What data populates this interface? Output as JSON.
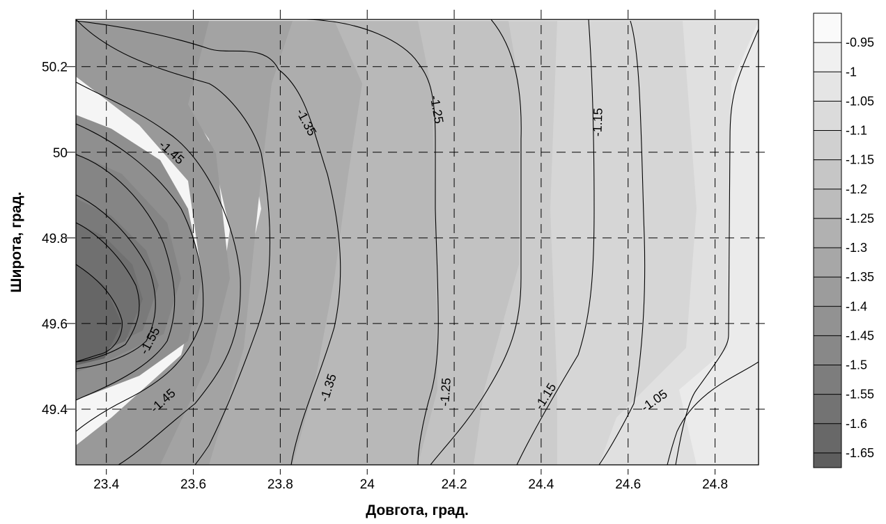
{
  "chart_data": {
    "type": "contour",
    "title": "",
    "xlabel": "Довгота, град.",
    "ylabel": "Широта, град.",
    "xlim": [
      23.33,
      24.9
    ],
    "ylim": [
      49.27,
      50.31
    ],
    "x_ticks": [
      23.4,
      23.6,
      23.8,
      24.0,
      24.2,
      24.4,
      24.6,
      24.8
    ],
    "x_tick_labels": [
      "23.4",
      "23.6",
      "23.8",
      "24",
      "24.2",
      "24.4",
      "24.6",
      "24.8"
    ],
    "y_ticks": [
      49.4,
      49.6,
      49.8,
      50.0,
      50.2
    ],
    "y_tick_labels": [
      "49.4",
      "49.6",
      "49.8",
      "50",
      "50.2"
    ],
    "grid": true,
    "grid_style": "dashed",
    "legend_position": "right",
    "colors": {
      "darkest": "#5e5e5e",
      "lightest": "#f5f5f5",
      "lines": "#000000"
    },
    "legend_levels": [
      {
        "value": -0.95,
        "label": "-0.95"
      },
      {
        "value": -1.0,
        "label": "-1"
      },
      {
        "value": -1.05,
        "label": "-1.05"
      },
      {
        "value": -1.1,
        "label": "-1.1"
      },
      {
        "value": -1.15,
        "label": "-1.15"
      },
      {
        "value": -1.2,
        "label": "-1.2"
      },
      {
        "value": -1.25,
        "label": "-1.25"
      },
      {
        "value": -1.3,
        "label": "-1.3"
      },
      {
        "value": -1.35,
        "label": "-1.35"
      },
      {
        "value": -1.4,
        "label": "-1.4"
      },
      {
        "value": -1.45,
        "label": "-1.45"
      },
      {
        "value": -1.5,
        "label": "-1.5"
      },
      {
        "value": -1.55,
        "label": "-1.55"
      },
      {
        "value": -1.6,
        "label": "-1.6"
      },
      {
        "value": -1.65,
        "label": "-1.65"
      }
    ],
    "contour_labels": [
      {
        "text": "-1.45",
        "x": 23.55,
        "y": 50.0,
        "angle": 42
      },
      {
        "text": "-1.35",
        "x": 23.86,
        "y": 50.07,
        "angle": 62
      },
      {
        "text": "-1.25",
        "x": 24.16,
        "y": 50.1,
        "angle": 80
      },
      {
        "text": "-1.15",
        "x": 24.53,
        "y": 50.07,
        "angle": -88
      },
      {
        "text": "-1.55",
        "x": 23.5,
        "y": 49.56,
        "angle": -62
      },
      {
        "text": "-1.45",
        "x": 23.53,
        "y": 49.42,
        "angle": -42
      },
      {
        "text": "-1.35",
        "x": 23.91,
        "y": 49.45,
        "angle": -72
      },
      {
        "text": "-1.25",
        "x": 24.18,
        "y": 49.44,
        "angle": -86
      },
      {
        "text": "-1.15",
        "x": 24.41,
        "y": 49.43,
        "angle": -58
      },
      {
        "text": "-1.05",
        "x": 24.66,
        "y": 49.42,
        "angle": -35
      }
    ]
  }
}
